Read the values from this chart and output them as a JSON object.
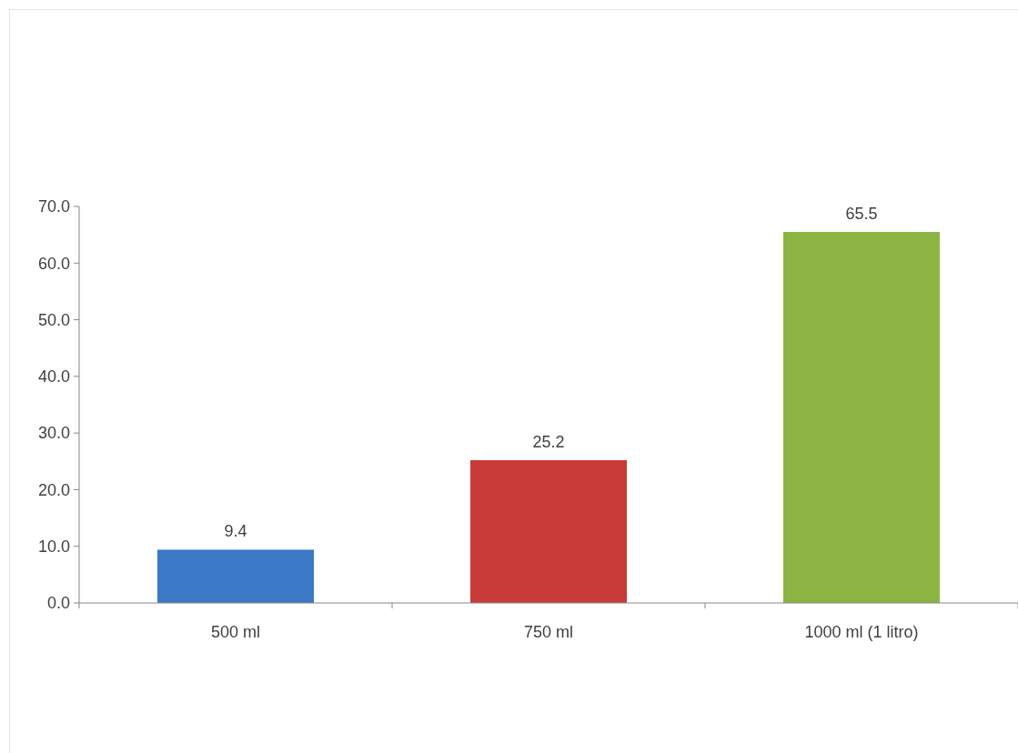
{
  "chart_data": {
    "type": "bar",
    "categories": [
      "500 ml",
      "750 ml",
      "1000 ml (1 litro)"
    ],
    "values": [
      9.4,
      25.2,
      65.5
    ],
    "colors": [
      "#3b79c6",
      "#c93b38",
      "#8cb443"
    ],
    "ylim": [
      0,
      70
    ],
    "yticks": [
      {
        "value": 0,
        "label": "0.0"
      },
      {
        "value": 10,
        "label": "10.0"
      },
      {
        "value": 20,
        "label": "20.0"
      },
      {
        "value": 30,
        "label": "30.0"
      },
      {
        "value": 40,
        "label": "40.0"
      },
      {
        "value": 50,
        "label": "50.0"
      },
      {
        "value": 60,
        "label": "60.0"
      },
      {
        "value": 70,
        "label": "70.0"
      }
    ],
    "data_labels": true,
    "grid": false
  }
}
